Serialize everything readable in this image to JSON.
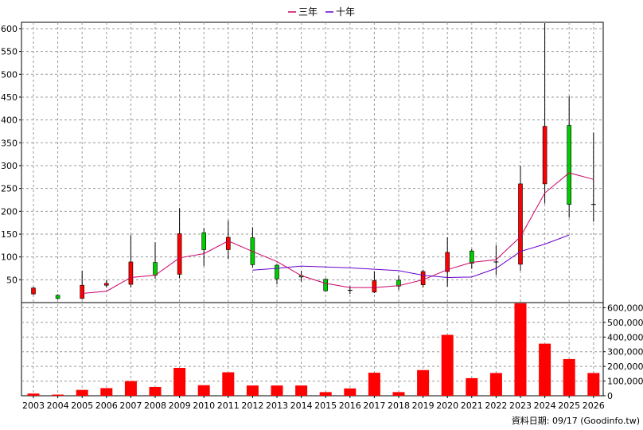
{
  "chart_data": {
    "type": "candlestick+volume",
    "legend": [
      {
        "name": "三年",
        "color": "#cc0066"
      },
      {
        "name": "十年",
        "color": "#6600cc"
      }
    ],
    "footer": "資料日期: 09/17  (Goodinfo.tw)",
    "years": [
      "2003",
      "2004",
      "2005",
      "2006",
      "2007",
      "2008",
      "2009",
      "2010",
      "2011",
      "2012",
      "2013",
      "2014",
      "2015",
      "2016",
      "2017",
      "2018",
      "2019",
      "2020",
      "2021",
      "2022",
      "2023",
      "2024",
      "2025",
      "2026"
    ],
    "price_axis": {
      "ticks": [
        50,
        100,
        150,
        200,
        250,
        300,
        350,
        400,
        450,
        500,
        550,
        600
      ],
      "range": [
        0,
        620
      ]
    },
    "volume_axis": {
      "ticks": [
        0,
        100000,
        200000,
        300000,
        400000,
        500000,
        600000
      ],
      "tick_labels": [
        "0",
        "100,000",
        "200,000",
        "300,000",
        "400,000",
        "500,000",
        "600,000"
      ],
      "range": [
        0,
        640000
      ]
    },
    "candles": [
      {
        "year": "2003",
        "open": 19,
        "close": 32,
        "high": 34,
        "low": 17
      },
      {
        "year": "2004",
        "open": 16,
        "close": 9,
        "high": 18,
        "low": 7
      },
      {
        "year": "2005",
        "open": 9,
        "close": 38,
        "high": 70,
        "low": 8
      },
      {
        "year": "2006",
        "open": 38,
        "close": 42,
        "high": 50,
        "low": 33
      },
      {
        "year": "2007",
        "open": 40,
        "close": 89,
        "high": 148,
        "low": 33
      },
      {
        "year": "2008",
        "open": 88,
        "close": 60,
        "high": 132,
        "low": 52
      },
      {
        "year": "2009",
        "open": 62,
        "close": 151,
        "high": 207,
        "low": 53
      },
      {
        "year": "2010",
        "open": 153,
        "close": 116,
        "high": 163,
        "low": 80
      },
      {
        "year": "2011",
        "open": 116,
        "close": 143,
        "high": 180,
        "low": 95
      },
      {
        "year": "2012",
        "open": 142,
        "close": 83,
        "high": 165,
        "low": 77
      },
      {
        "year": "2013",
        "open": 82,
        "close": 52,
        "high": 84,
        "low": 40
      },
      {
        "year": "2014",
        "open": 59,
        "close": 56,
        "high": 70,
        "low": 46
      },
      {
        "year": "2015",
        "open": 51,
        "close": 26,
        "high": 53,
        "low": 24
      },
      {
        "year": "2016",
        "open": 27,
        "close": 26,
        "high": 36,
        "low": 19
      },
      {
        "year": "2017",
        "open": 23,
        "close": 48,
        "high": 68,
        "low": 21
      },
      {
        "year": "2018",
        "open": 49,
        "close": 36,
        "high": 60,
        "low": 28
      },
      {
        "year": "2019",
        "open": 39,
        "close": 68,
        "high": 72,
        "low": 33
      },
      {
        "year": "2020",
        "open": 68,
        "close": 110,
        "high": 143,
        "low": 35
      },
      {
        "year": "2021",
        "open": 113,
        "close": 86,
        "high": 117,
        "low": 74
      },
      {
        "year": "2022",
        "open": 87,
        "close": 89,
        "high": 126,
        "low": 60
      },
      {
        "year": "2023",
        "open": 84,
        "close": 260,
        "high": 300,
        "low": 70
      },
      {
        "year": "2024",
        "open": 260,
        "close": 386,
        "high": 612,
        "low": 217
      },
      {
        "year": "2025",
        "open": 388,
        "close": 215,
        "high": 452,
        "low": 186
      },
      {
        "year": "2026",
        "open": 213,
        "close": 215,
        "high": 372,
        "low": 177
      }
    ],
    "ma3": {
      "name": "三年",
      "start_year": "2005",
      "values": [
        20,
        25,
        55,
        60,
        98,
        107,
        135,
        112,
        90,
        59,
        42,
        33,
        33,
        37,
        50,
        72,
        88,
        94,
        144,
        240,
        284,
        270
      ]
    },
    "ma10": {
      "name": "十年",
      "start_year": "2012",
      "values": [
        71,
        75,
        80,
        78,
        76,
        73,
        70,
        60,
        55,
        56,
        75,
        112,
        128,
        148
      ]
    },
    "volumes": [
      15000,
      8000,
      40000,
      52000,
      100000,
      60000,
      190000,
      72000,
      160000,
      70000,
      70000,
      70000,
      25000,
      50000,
      157000,
      25000,
      175000,
      415000,
      120000,
      155000,
      630000,
      355000,
      250000,
      155000
    ]
  }
}
